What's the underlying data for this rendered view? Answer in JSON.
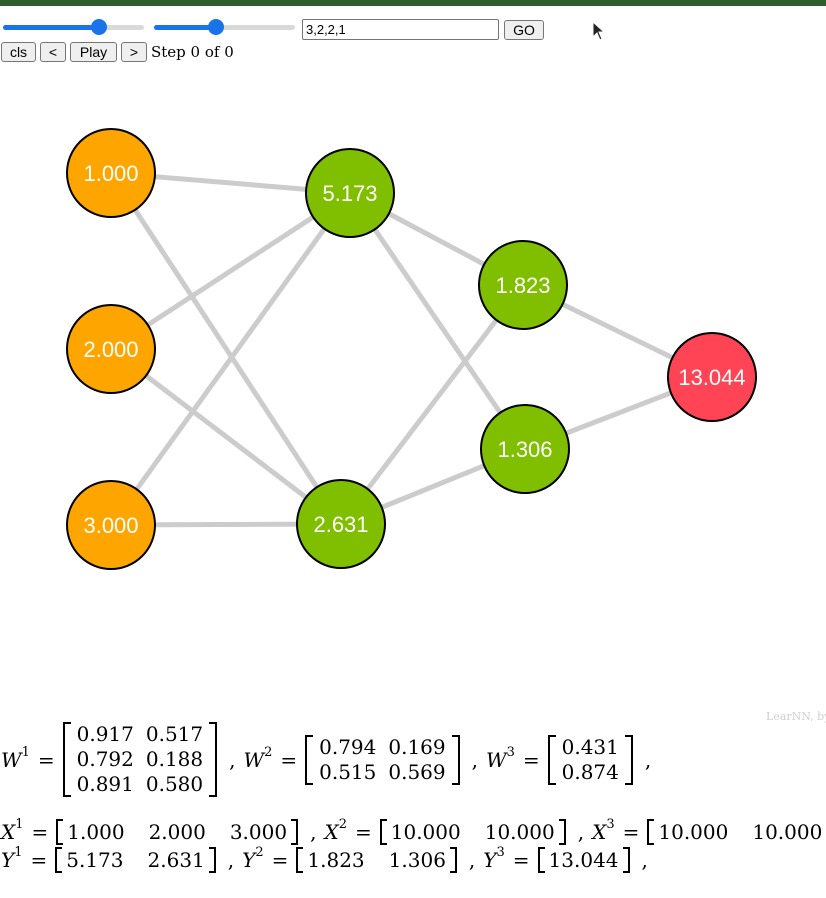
{
  "controls": {
    "slider_1_value": 0.68,
    "slider_2_value": 0.44,
    "input_value": "3,2,2,1",
    "go_label": "GO",
    "cls_label": "cls",
    "prev_label": "<",
    "play_label": "Play",
    "next_label": ">",
    "step_label": "Step 0 of 0"
  },
  "network": {
    "colors": {
      "input": "#FFA500",
      "hidden": "#7FBF00",
      "output": "#FF4455",
      "edge": "#CCCCCC",
      "stroke": "#000000"
    },
    "layers": [
      {
        "kind": "input",
        "values": [
          "1.000",
          "2.000",
          "3.000"
        ]
      },
      {
        "kind": "hidden",
        "values": [
          "5.173",
          "2.631"
        ]
      },
      {
        "kind": "hidden",
        "values": [
          "1.823",
          "1.306"
        ]
      },
      {
        "kind": "output",
        "values": [
          "13.044"
        ]
      }
    ]
  },
  "credit": "LearNN, by",
  "math": {
    "weights": [
      {
        "name": "W",
        "sup": "1",
        "rows": [
          [
            "0.917",
            "0.517"
          ],
          [
            "0.792",
            "0.188"
          ],
          [
            "0.891",
            "0.580"
          ]
        ]
      },
      {
        "name": "W",
        "sup": "2",
        "rows": [
          [
            "0.794",
            "0.169"
          ],
          [
            "0.515",
            "0.569"
          ]
        ]
      },
      {
        "name": "W",
        "sup": "3",
        "rows": [
          [
            "0.431"
          ],
          [
            "0.874"
          ]
        ]
      }
    ],
    "inputs": [
      {
        "name": "X",
        "sup": "1",
        "values": [
          "1.000",
          "2.000",
          "3.000"
        ]
      },
      {
        "name": "X",
        "sup": "2",
        "values": [
          "10.000",
          "10.000"
        ]
      },
      {
        "name": "X",
        "sup": "3",
        "values": [
          "10.000",
          "10.000"
        ]
      }
    ],
    "outputs": [
      {
        "name": "Y",
        "sup": "1",
        "values": [
          "5.173",
          "2.631"
        ]
      },
      {
        "name": "Y",
        "sup": "2",
        "values": [
          "1.823",
          "1.306"
        ]
      },
      {
        "name": "Y",
        "sup": "3",
        "values": [
          "13.044"
        ]
      }
    ]
  }
}
